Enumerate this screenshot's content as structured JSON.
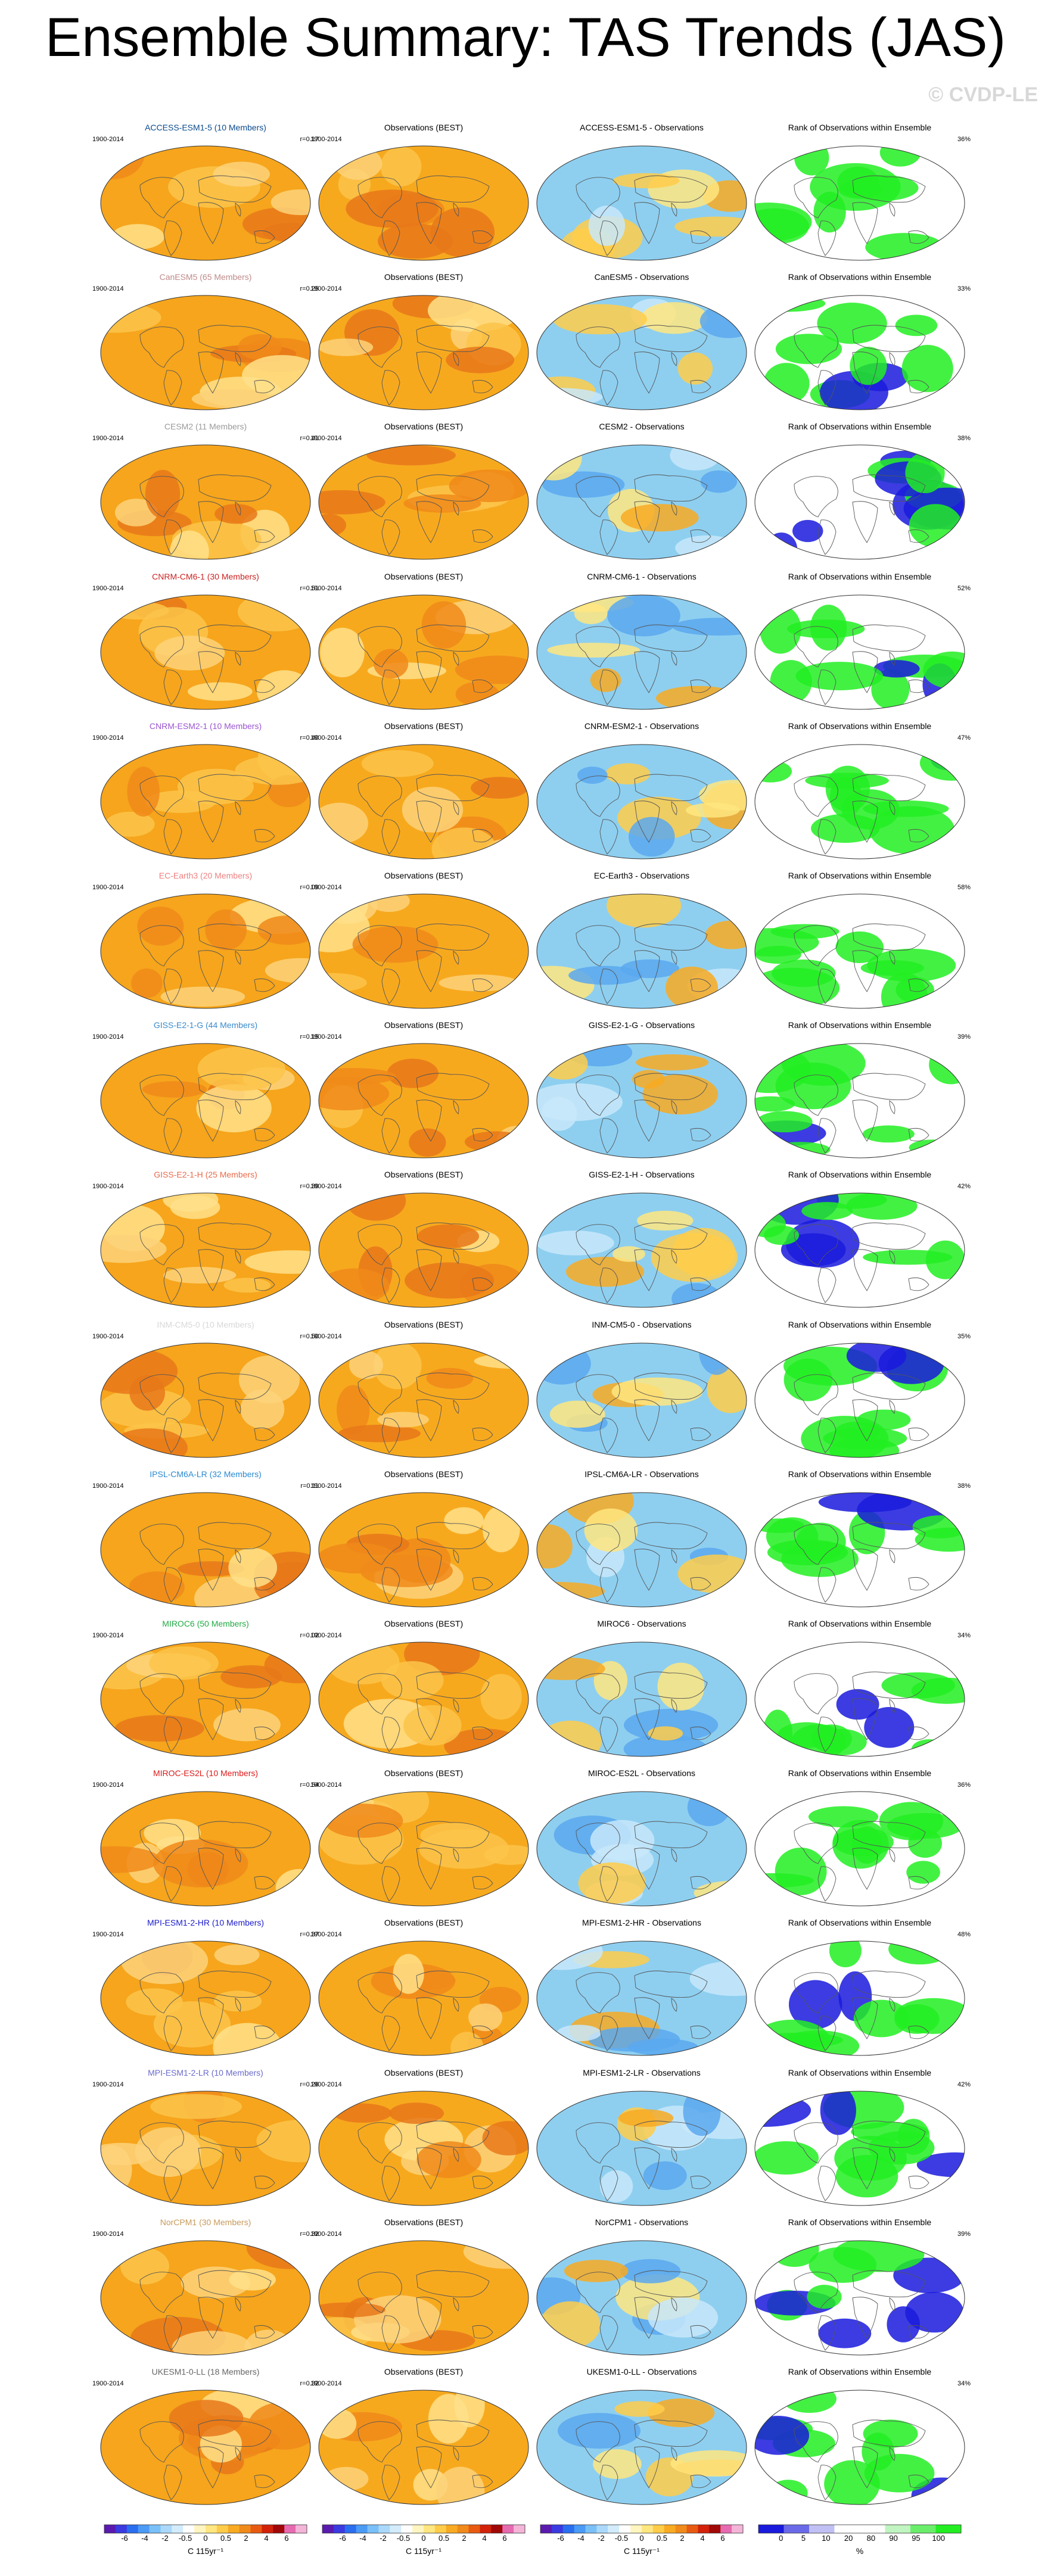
{
  "title": "Ensemble Summary: TAS Trends (JAS)",
  "watermark": "© CVDP-LE",
  "obs_title": "Observations (BEST)",
  "rank_title": "Rank of Observations within Ensemble",
  "period": "1900-2014",
  "colors": {
    "ensemble_field": "#f6a51c",
    "obs_field": "#f7a91e",
    "diff_field": "#8ecff0",
    "rank_field": "#ffffff",
    "rank_high": "#22ee22",
    "rank_low": "#1a1add",
    "coast": "#555555"
  },
  "rows": [
    {
      "model": "ACCESS-ESM1-5 (10 Members)",
      "model_color": "#0a4a8c",
      "r": "r=0.17",
      "diff": "ACCESS-ESM1-5 - Observations",
      "pct": "36%"
    },
    {
      "model": "CanESM5 (65 Members)",
      "model_color": "#c08a8a",
      "r": "r=0.25",
      "diff": "CanESM5 - Observations",
      "pct": "33%"
    },
    {
      "model": "CESM2 (11 Members)",
      "model_color": "#9a9a9a",
      "r": "r=0.41",
      "diff": "CESM2 - Observations",
      "pct": "38%"
    },
    {
      "model": "CNRM-CM6-1 (30 Members)",
      "model_color": "#cc2222",
      "r": "r=0.51",
      "diff": "CNRM-CM6-1 - Observations",
      "pct": "52%"
    },
    {
      "model": "CNRM-ESM2-1 (10 Members)",
      "model_color": "#9a55d0",
      "r": "r=0.40",
      "diff": "CNRM-ESM2-1 - Observations",
      "pct": "47%"
    },
    {
      "model": "EC-Earth3 (20 Members)",
      "model_color": "#f08080",
      "r": "r=0.09",
      "diff": "EC-Earth3 - Observations",
      "pct": "58%"
    },
    {
      "model": "GISS-E2-1-G (44 Members)",
      "model_color": "#3a8acc",
      "r": "r=0.15",
      "diff": "GISS-E2-1-G - Observations",
      "pct": "39%"
    },
    {
      "model": "GISS-E2-1-H (25 Members)",
      "model_color": "#e86a4a",
      "r": "r=0.39",
      "diff": "GISS-E2-1-H - Observations",
      "pct": "42%"
    },
    {
      "model": "INM-CM5-0 (10 Members)",
      "model_color": "#d8d8d8",
      "r": "r=0.50",
      "diff": "INM-CM5-0 - Observations",
      "pct": "35%"
    },
    {
      "model": "IPSL-CM6A-LR (32 Members)",
      "model_color": "#2a8ad0",
      "r": "r=0.11",
      "diff": "IPSL-CM6A-LR - Observations",
      "pct": "38%"
    },
    {
      "model": "MIROC6 (50 Members)",
      "model_color": "#22aa44",
      "r": "r=0.02",
      "diff": "MIROC6 - Observations",
      "pct": "34%"
    },
    {
      "model": "MIROC-ES2L (10 Members)",
      "model_color": "#dd1a1a",
      "r": "r=0.54",
      "diff": "MIROC-ES2L - Observations",
      "pct": "36%"
    },
    {
      "model": "MPI-ESM1-2-HR (10 Members)",
      "model_color": "#1a1acc",
      "r": "r=0.37",
      "diff": "MPI-ESM1-2-HR - Observations",
      "pct": "48%"
    },
    {
      "model": "MPI-ESM1-2-LR (10 Members)",
      "model_color": "#6a6acc",
      "r": "r=0.26",
      "diff": "MPI-ESM1-2-LR - Observations",
      "pct": "42%"
    },
    {
      "model": "NorCPM1 (30 Members)",
      "model_color": "#c89a5a",
      "r": "r=0.32",
      "diff": "NorCPM1 - Observations",
      "pct": "39%"
    },
    {
      "model": "UKESM1-0-LL (18 Members)",
      "model_color": "#666666",
      "r": "r=0.32",
      "diff": "UKESM1-0-LL - Observations",
      "pct": "34%"
    }
  ],
  "colorbars": {
    "trend": {
      "ticks": [
        "-6",
        "-4",
        "-2",
        "-0.5",
        "0",
        "0.5",
        "2",
        "4",
        "6"
      ],
      "unit": "C 115yr⁻¹",
      "colors": [
        "#5a1ab0",
        "#3a3ae0",
        "#2a6ef0",
        "#4a9af6",
        "#7ac0f8",
        "#aad8fa",
        "#d2ecfc",
        "#ffffff",
        "#fff5c0",
        "#ffe680",
        "#ffcc4a",
        "#f8aa22",
        "#f08a1a",
        "#e85a12",
        "#d2220a",
        "#a00808",
        "#e66ab0",
        "#f4b4d8"
      ]
    },
    "rank": {
      "ticks": [
        "0",
        "5",
        "10",
        "20",
        "80",
        "90",
        "95",
        "100"
      ],
      "unit": "%",
      "colors": [
        "#1a1add",
        "#6a6ae8",
        "#c0c0f4",
        "#ffffff",
        "#ffffff",
        "#c0f4c0",
        "#6aee6a",
        "#22ee22"
      ]
    }
  }
}
